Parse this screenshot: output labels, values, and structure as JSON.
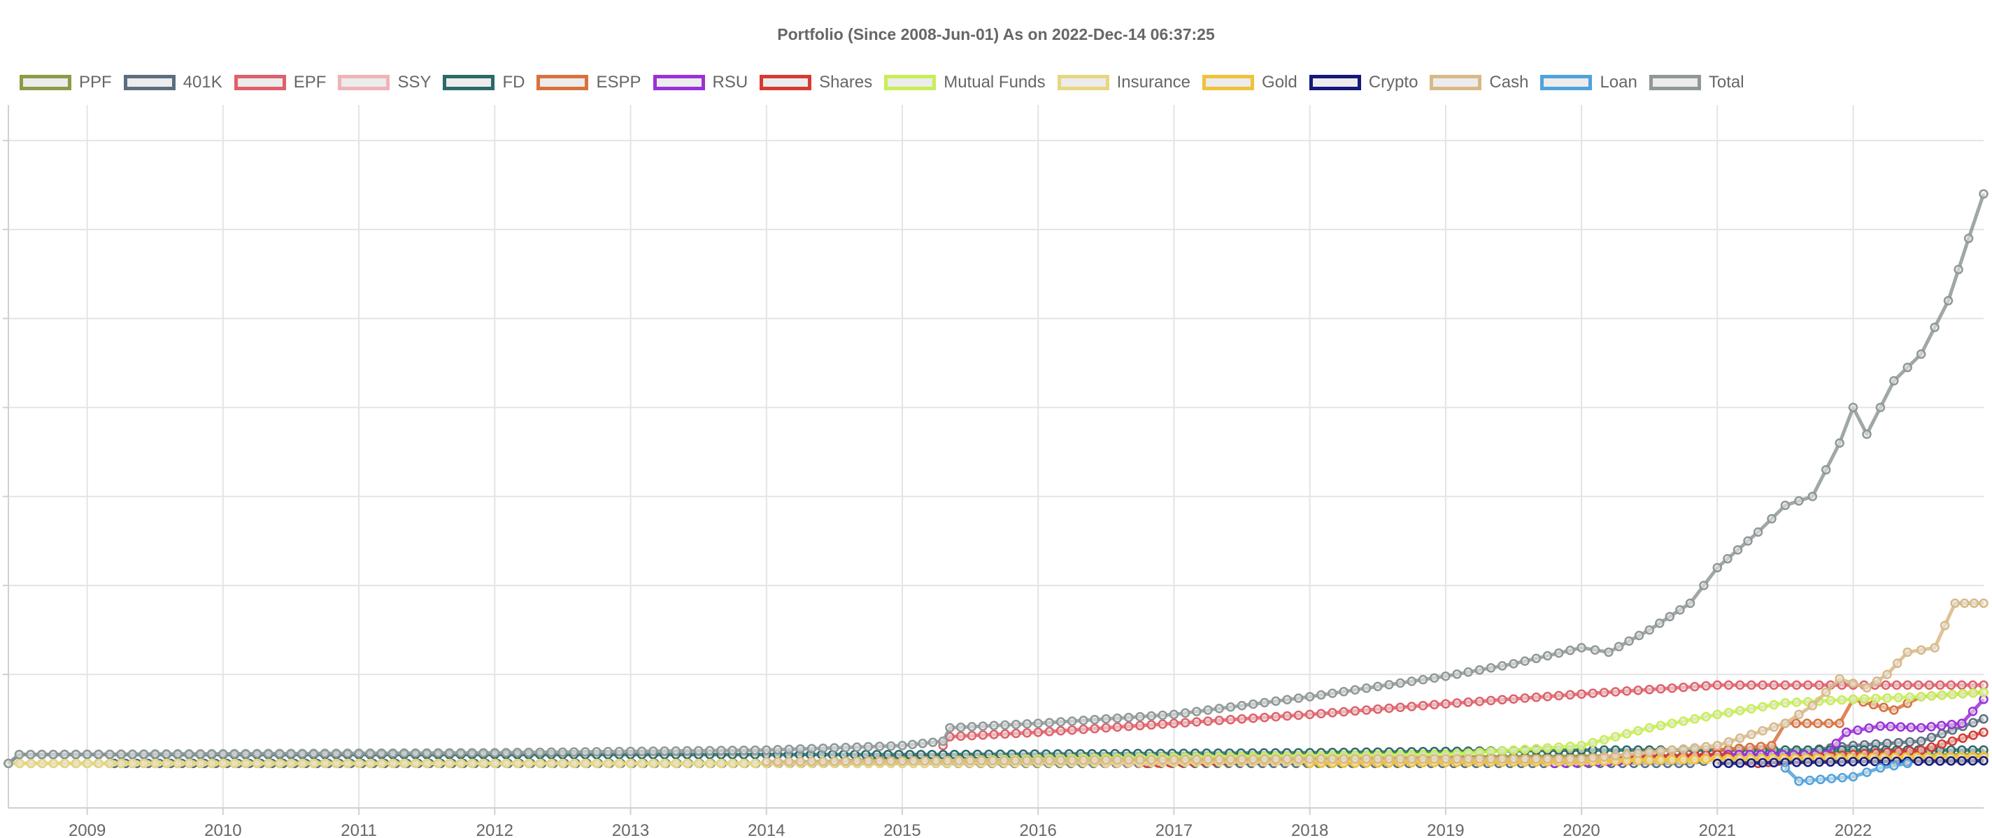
{
  "chart_data": {
    "type": "line",
    "title": "Portfolio (Since 2008-Jun-01) As on 2022-Dec-14 06:37:25",
    "x_ticks": [
      "2009",
      "2010",
      "2011",
      "2012",
      "2013",
      "2014",
      "2015",
      "2016",
      "2017",
      "2018",
      "2019",
      "2020",
      "2021",
      "2022"
    ],
    "xlim": [
      2008.42,
      2022.96
    ],
    "y_ticks_labeled": false,
    "ylim": [
      -0.5,
      7.4
    ],
    "gridlines_y": [
      0,
      1,
      2,
      3,
      4,
      5,
      6,
      7
    ],
    "grid": true,
    "legend_position": "top",
    "series": [
      {
        "name": "PPF",
        "color": "#8e9a46",
        "points": [
          [
            2008.42,
            0.0
          ],
          [
            2009.0,
            0.0
          ],
          [
            2014.0,
            0.0
          ],
          [
            2015.0,
            0.05
          ],
          [
            2016.0,
            0.05
          ],
          [
            2020.0,
            0.08
          ],
          [
            2022.96,
            0.1
          ]
        ]
      },
      {
        "name": "401K",
        "color": "#5b6e80",
        "points": [
          [
            2009.2,
            0.0
          ],
          [
            2015.0,
            0.0
          ],
          [
            2020.8,
            0.0
          ],
          [
            2021.0,
            0.05
          ],
          [
            2021.5,
            0.12
          ],
          [
            2022.0,
            0.2
          ],
          [
            2022.5,
            0.25
          ],
          [
            2022.96,
            0.5
          ]
        ]
      },
      {
        "name": "EPF",
        "color": "#e0606a",
        "points": [
          [
            2015.3,
            0.2
          ],
          [
            2015.35,
            0.3
          ],
          [
            2016.0,
            0.35
          ],
          [
            2017.0,
            0.45
          ],
          [
            2018.0,
            0.55
          ],
          [
            2019.0,
            0.67
          ],
          [
            2020.0,
            0.78
          ],
          [
            2021.0,
            0.88
          ],
          [
            2022.0,
            0.88
          ],
          [
            2022.96,
            0.88
          ]
        ]
      },
      {
        "name": "SSY",
        "color": "#f0b3b8",
        "points": [
          [
            2016.5,
            0.0
          ],
          [
            2018.0,
            0.03
          ],
          [
            2020.0,
            0.05
          ],
          [
            2022.96,
            0.08
          ]
        ]
      },
      {
        "name": "FD",
        "color": "#2b6a6a",
        "points": [
          [
            2008.42,
            0.0
          ],
          [
            2008.5,
            0.1
          ],
          [
            2009.0,
            0.1
          ],
          [
            2012.0,
            0.1
          ],
          [
            2014.0,
            0.1
          ],
          [
            2015.3,
            0.1
          ],
          [
            2018.0,
            0.12
          ],
          [
            2020.0,
            0.15
          ],
          [
            2021.0,
            0.15
          ],
          [
            2022.0,
            0.15
          ],
          [
            2022.96,
            0.15
          ]
        ]
      },
      {
        "name": "ESPP",
        "color": "#d9713c",
        "points": [
          [
            2021.0,
            0.15
          ],
          [
            2021.4,
            0.2
          ],
          [
            2021.5,
            0.45
          ],
          [
            2021.9,
            0.45
          ],
          [
            2022.0,
            0.72
          ],
          [
            2022.3,
            0.6
          ],
          [
            2022.5,
            0.75
          ],
          [
            2022.96,
            0.8
          ]
        ]
      },
      {
        "name": "RSU",
        "color": "#9b30d9",
        "points": [
          [
            2019.8,
            0.0
          ],
          [
            2020.2,
            0.02
          ],
          [
            2020.5,
            0.05
          ],
          [
            2021.0,
            0.1
          ],
          [
            2021.8,
            0.1
          ],
          [
            2021.95,
            0.35
          ],
          [
            2022.2,
            0.42
          ],
          [
            2022.5,
            0.4
          ],
          [
            2022.8,
            0.45
          ],
          [
            2022.96,
            0.72
          ]
        ]
      },
      {
        "name": "Shares",
        "color": "#d63a32",
        "points": [
          [
            2016.8,
            0.0
          ],
          [
            2018.0,
            0.05
          ],
          [
            2020.0,
            0.05
          ],
          [
            2021.0,
            0.1
          ],
          [
            2021.3,
            0.0
          ],
          [
            2021.6,
            0.05
          ],
          [
            2022.0,
            0.1
          ],
          [
            2022.5,
            0.15
          ],
          [
            2022.96,
            0.35
          ]
        ]
      },
      {
        "name": "Mutual Funds",
        "color": "#c7ee55",
        "points": [
          [
            2008.42,
            0.0
          ],
          [
            2014.0,
            0.0
          ],
          [
            2016.0,
            0.05
          ],
          [
            2019.0,
            0.1
          ],
          [
            2020.0,
            0.2
          ],
          [
            2020.5,
            0.4
          ],
          [
            2021.0,
            0.55
          ],
          [
            2021.5,
            0.68
          ],
          [
            2022.0,
            0.72
          ],
          [
            2022.5,
            0.75
          ],
          [
            2022.96,
            0.8
          ]
        ]
      },
      {
        "name": "Insurance",
        "color": "#e8d680",
        "points": [
          [
            2008.42,
            0.0
          ],
          [
            2015.0,
            0.0
          ],
          [
            2018.0,
            0.02
          ],
          [
            2020.0,
            0.04
          ],
          [
            2022.96,
            0.05
          ]
        ]
      },
      {
        "name": "Gold",
        "color": "#f0c23a",
        "points": [
          [
            2018.0,
            0.0
          ],
          [
            2020.0,
            0.02
          ],
          [
            2021.0,
            0.05
          ],
          [
            2022.96,
            0.08
          ]
        ]
      },
      {
        "name": "Crypto",
        "color": "#14197a",
        "points": [
          [
            2021.0,
            0.0
          ],
          [
            2022.0,
            0.02
          ],
          [
            2022.96,
            0.03
          ]
        ]
      },
      {
        "name": "Cash",
        "color": "#d8b986",
        "points": [
          [
            2014.0,
            0.02
          ],
          [
            2018.0,
            0.05
          ],
          [
            2020.0,
            0.05
          ],
          [
            2021.0,
            0.2
          ],
          [
            2021.5,
            0.45
          ],
          [
            2021.7,
            0.65
          ],
          [
            2021.9,
            0.95
          ],
          [
            2022.1,
            0.85
          ],
          [
            2022.25,
            1.0
          ],
          [
            2022.4,
            1.25
          ],
          [
            2022.6,
            1.3
          ],
          [
            2022.75,
            1.8
          ],
          [
            2022.96,
            1.8
          ]
        ]
      },
      {
        "name": "Loan",
        "color": "#4fa3dc",
        "points": [
          [
            2021.5,
            -0.05
          ],
          [
            2021.6,
            -0.2
          ],
          [
            2022.0,
            -0.15
          ],
          [
            2022.2,
            -0.05
          ],
          [
            2022.4,
            0.0
          ]
        ]
      },
      {
        "name": "Total",
        "color": "#8f9898",
        "points": [
          [
            2008.42,
            0.0
          ],
          [
            2008.5,
            0.1
          ],
          [
            2012.0,
            0.12
          ],
          [
            2014.0,
            0.15
          ],
          [
            2015.0,
            0.2
          ],
          [
            2015.3,
            0.25
          ],
          [
            2015.35,
            0.4
          ],
          [
            2016.0,
            0.45
          ],
          [
            2017.0,
            0.55
          ],
          [
            2018.0,
            0.75
          ],
          [
            2019.0,
            0.98
          ],
          [
            2019.5,
            1.12
          ],
          [
            2020.0,
            1.3
          ],
          [
            2020.2,
            1.25
          ],
          [
            2020.5,
            1.5
          ],
          [
            2020.8,
            1.8
          ],
          [
            2021.0,
            2.2
          ],
          [
            2021.3,
            2.6
          ],
          [
            2021.5,
            2.9
          ],
          [
            2021.7,
            3.0
          ],
          [
            2021.9,
            3.6
          ],
          [
            2022.0,
            4.0
          ],
          [
            2022.1,
            3.7
          ],
          [
            2022.3,
            4.3
          ],
          [
            2022.5,
            4.6
          ],
          [
            2022.7,
            5.2
          ],
          [
            2022.85,
            5.9
          ],
          [
            2022.96,
            6.4
          ]
        ]
      }
    ]
  }
}
